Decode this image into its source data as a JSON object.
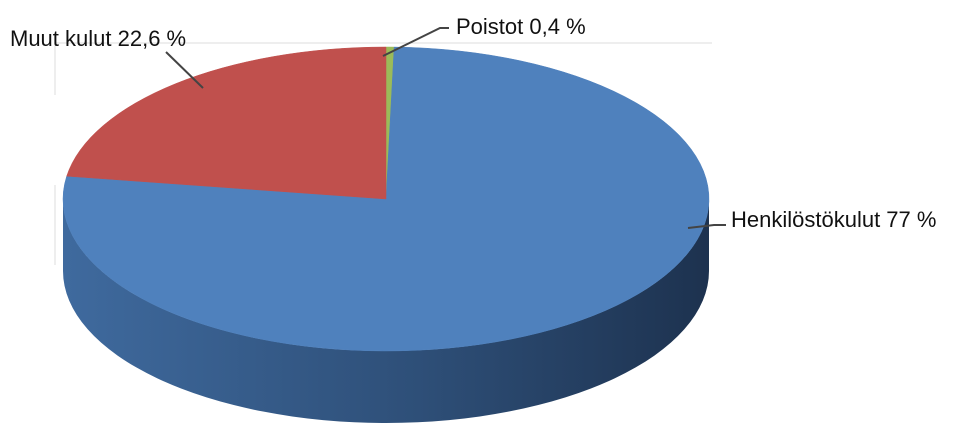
{
  "chart_data": {
    "type": "pie",
    "title": "",
    "slices": [
      {
        "name": "Henkilöstökulut",
        "value": 77,
        "label": "Henkilöstökulut 77 %",
        "color": "#4f81bd"
      },
      {
        "name": "Muut kulut",
        "value": 22.6,
        "label": "Muut kulut 22,6 %",
        "color": "#c0504d"
      },
      {
        "name": "Poistot",
        "value": 0.4,
        "label": "Poistot 0,4 %",
        "color": "#9bbb59"
      }
    ],
    "style": "3d"
  }
}
